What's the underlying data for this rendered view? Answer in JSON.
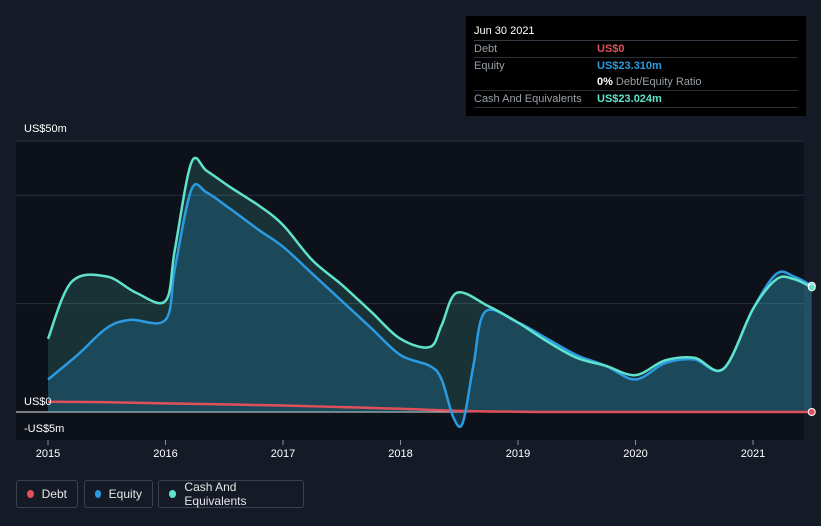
{
  "tooltip": {
    "date": "Jun 30 2021",
    "debt_label": "Debt",
    "debt_value": "US$0",
    "equity_label": "Equity",
    "equity_value": "US$23.310m",
    "ratio_pct": "0%",
    "ratio_label": "Debt/Equity Ratio",
    "cash_label": "Cash And Equivalents",
    "cash_value": "US$23.024m"
  },
  "legend": {
    "debt": "Debt",
    "equity": "Equity",
    "cash": "Cash And Equivalents"
  },
  "colors": {
    "debt": "#e0505a",
    "equity": "#2b9ae0",
    "cash": "#5fe3cc",
    "background": "#151b26",
    "plot": "#0d1119"
  },
  "chart_data": {
    "type": "area",
    "title": "",
    "xlabel": "",
    "ylabel": "",
    "y_tick_labels": [
      "US$50m",
      "US$0",
      "-US$5m"
    ],
    "ylim": [
      -5,
      50
    ],
    "xlim": [
      2014.95,
      2021.5
    ],
    "x_ticks": [
      2015,
      2016,
      2017,
      2018,
      2019,
      2020,
      2021
    ],
    "series": [
      {
        "name": "Debt",
        "points": [
          [
            2015.0,
            1.9
          ],
          [
            2015.5,
            1.8
          ],
          [
            2016.0,
            1.6
          ],
          [
            2016.5,
            1.4
          ],
          [
            2017.0,
            1.2
          ],
          [
            2017.5,
            0.9
          ],
          [
            2018.0,
            0.6
          ],
          [
            2018.25,
            0.4
          ],
          [
            2018.5,
            0.2
          ],
          [
            2018.75,
            0.1
          ],
          [
            2019.0,
            0.05
          ],
          [
            2019.25,
            0
          ],
          [
            2019.5,
            0
          ],
          [
            2020.0,
            0
          ],
          [
            2020.5,
            0
          ],
          [
            2021.0,
            0
          ],
          [
            2021.5,
            0
          ]
        ]
      },
      {
        "name": "Equity",
        "points": [
          [
            2015.0,
            6.0
          ],
          [
            2015.25,
            10.5
          ],
          [
            2015.5,
            15.5
          ],
          [
            2015.7,
            17.0
          ],
          [
            2016.0,
            17.0
          ],
          [
            2016.08,
            26.5
          ],
          [
            2016.22,
            41.0
          ],
          [
            2016.35,
            40.5
          ],
          [
            2016.55,
            37.5
          ],
          [
            2016.8,
            33.5
          ],
          [
            2017.0,
            30.5
          ],
          [
            2017.25,
            25.5
          ],
          [
            2017.5,
            20.5
          ],
          [
            2017.75,
            15.5
          ],
          [
            2018.0,
            10.5
          ],
          [
            2018.25,
            8.5
          ],
          [
            2018.35,
            6.0
          ],
          [
            2018.45,
            -1.0
          ],
          [
            2018.53,
            -2.0
          ],
          [
            2018.62,
            8.5
          ],
          [
            2018.72,
            18.5
          ],
          [
            2019.0,
            16.5
          ],
          [
            2019.25,
            13.5
          ],
          [
            2019.5,
            10.5
          ],
          [
            2019.75,
            8.5
          ],
          [
            2020.0,
            6.0
          ],
          [
            2020.25,
            9.0
          ],
          [
            2020.5,
            9.7
          ],
          [
            2020.75,
            8.0
          ],
          [
            2021.0,
            19.0
          ],
          [
            2021.2,
            25.5
          ],
          [
            2021.35,
            25.0
          ],
          [
            2021.5,
            23.3
          ]
        ]
      },
      {
        "name": "Cash And Equivalents",
        "points": [
          [
            2015.0,
            13.5
          ],
          [
            2015.2,
            24.0
          ],
          [
            2015.5,
            25.0
          ],
          [
            2015.75,
            22.0
          ],
          [
            2016.0,
            20.5
          ],
          [
            2016.08,
            30.0
          ],
          [
            2016.22,
            46.0
          ],
          [
            2016.35,
            44.5
          ],
          [
            2016.55,
            41.5
          ],
          [
            2016.8,
            38.0
          ],
          [
            2017.0,
            34.5
          ],
          [
            2017.25,
            28.0
          ],
          [
            2017.5,
            23.5
          ],
          [
            2017.75,
            18.5
          ],
          [
            2018.0,
            13.5
          ],
          [
            2018.25,
            12.0
          ],
          [
            2018.35,
            16.0
          ],
          [
            2018.48,
            22.0
          ],
          [
            2018.75,
            19.5
          ],
          [
            2019.0,
            16.5
          ],
          [
            2019.25,
            13.0
          ],
          [
            2019.5,
            10.0
          ],
          [
            2019.75,
            8.5
          ],
          [
            2020.0,
            6.8
          ],
          [
            2020.25,
            9.5
          ],
          [
            2020.5,
            10.0
          ],
          [
            2020.75,
            8.0
          ],
          [
            2021.0,
            19.0
          ],
          [
            2021.2,
            24.5
          ],
          [
            2021.35,
            24.5
          ],
          [
            2021.5,
            23.0
          ]
        ]
      }
    ]
  }
}
